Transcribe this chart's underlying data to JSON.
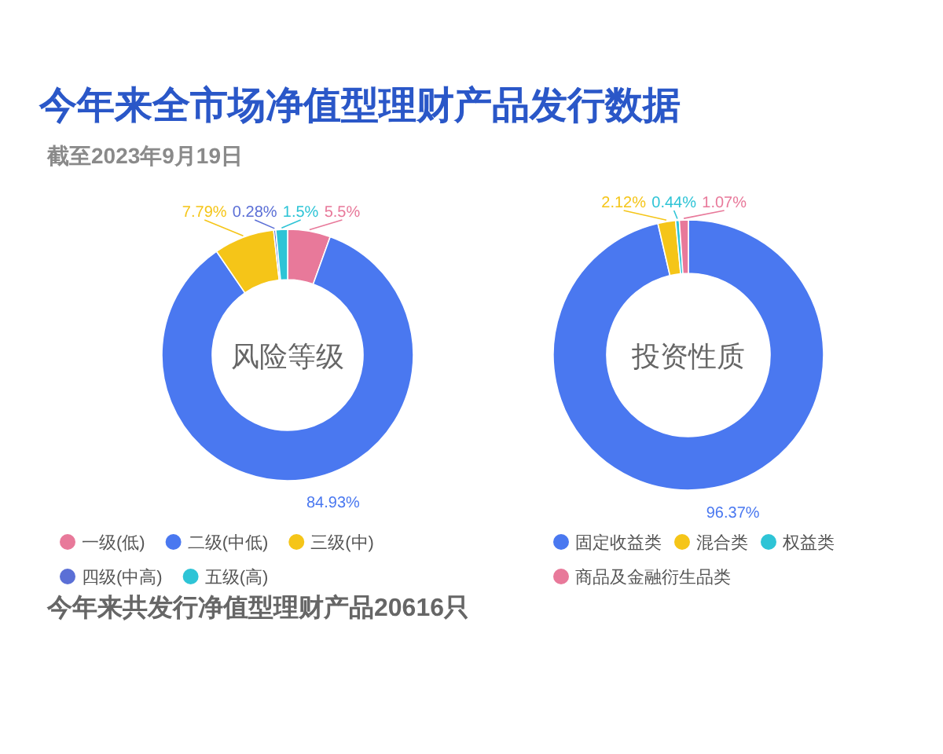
{
  "chart_data": [
    {
      "type": "donut",
      "title": "今年来全市场净值型理财产品发行数据",
      "subtitle": "截至2023年9月19日",
      "categories": [
        "一级(低)",
        "二级(中低)",
        "三级(中)",
        "四级(中高)",
        "五级(高)"
      ],
      "values": [
        5.5,
        84.93,
        7.79,
        0.28,
        1.5
      ],
      "colors": [
        "#e8799a",
        "#4a78f0",
        "#f5c518",
        "#5b6fd6",
        "#2ec4d6"
      ],
      "value_labels": [
        "5.5%",
        "84.93%",
        "7.79%",
        "0.28%",
        "1.5%"
      ],
      "legend": "bottom",
      "annotations": [
        "风险等级",
        "今年来共发行净值型理财产品20616只"
      ]
    },
    {
      "type": "donut",
      "categories": [
        "固定收益类",
        "混合类",
        "权益类",
        "商品及金融衍生品类"
      ],
      "values": [
        96.37,
        2.12,
        0.44,
        1.07
      ],
      "colors": [
        "#4a78f0",
        "#f5c518",
        "#2ec4d6",
        "#e8799a"
      ],
      "value_labels": [
        "96.37%",
        "2.12%",
        "0.44%",
        "1.07%"
      ],
      "legend": "bottom",
      "annotations": [
        "投资性质"
      ]
    }
  ]
}
